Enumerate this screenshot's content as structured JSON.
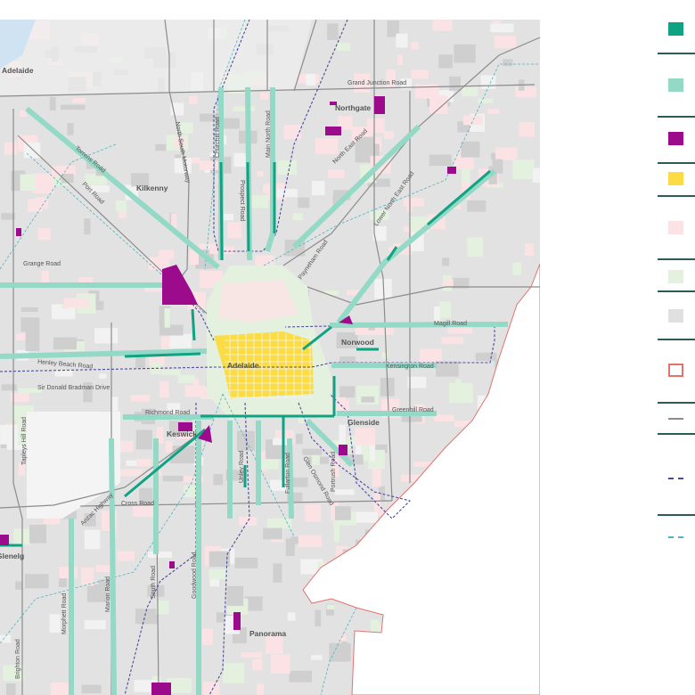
{
  "map": {
    "suburbs": [
      "Adelaide",
      "Northgate",
      "Kilkenny",
      "Norwood",
      "Adelaide",
      "Keswick",
      "Glenside",
      "Glenelg",
      "Panorama"
    ],
    "roads": [
      "Grand Junction Road",
      "North South Motorway",
      "Churchill Road",
      "Main North Road",
      "Prospect Road",
      "Torrens Road",
      "Port Road",
      "North East Road",
      "Lower North East Road",
      "Payneham Road",
      "Grange Road",
      "Henley Beach Road",
      "Sir Donald Bradman Drive",
      "Magill Road",
      "Kensington Road",
      "Greenhill Road",
      "Richmond Road",
      "Tapleys Hill Road",
      "Anzac Highway",
      "Cross Road",
      "Unley Road",
      "Fullarton Road",
      "Glen Osmond Road",
      "Portrush Road",
      "Goodwood Road",
      "South Road",
      "Marion Road",
      "Morphett Road",
      "Brighton Road"
    ]
  },
  "colors": {
    "corridor_dark": "#0fa383",
    "corridor_light": "#94d9c6",
    "activity_centre": "#9b0b8c",
    "city_centre": "#fbdc44",
    "residential": "#fbe3e5",
    "open_space": "#e4f1df",
    "other_land": "#e0e0e0",
    "boundary": "#e2736f",
    "road": "#8c8c8c",
    "tram_line": "#4b4b9b",
    "rail_line": "#4fb3bd"
  },
  "legend": {
    "items": [
      {
        "icon": "dark-teal-square-icon",
        "color": "#0fa383"
      },
      {
        "icon": "light-teal-square-icon",
        "color": "#94d9c6"
      },
      {
        "icon": "purple-square-icon",
        "color": "#9b0b8c"
      },
      {
        "icon": "yellow-square-icon",
        "color": "#fbdc44"
      },
      {
        "icon": "pink-square-icon",
        "color": "#fbe3e5"
      },
      {
        "icon": "light-green-square-icon",
        "color": "#e4f1df"
      },
      {
        "icon": "grey-square-icon",
        "color": "#e0e0e0"
      },
      {
        "icon": "red-outline-square-icon",
        "color": "#e2736f"
      },
      {
        "icon": "grey-line-icon",
        "color": "#8c8c8c"
      },
      {
        "icon": "blue-dashed-line-icon",
        "color": "#4b4b9b"
      },
      {
        "icon": "teal-dashed-line-icon",
        "color": "#4fb3bd"
      }
    ]
  }
}
